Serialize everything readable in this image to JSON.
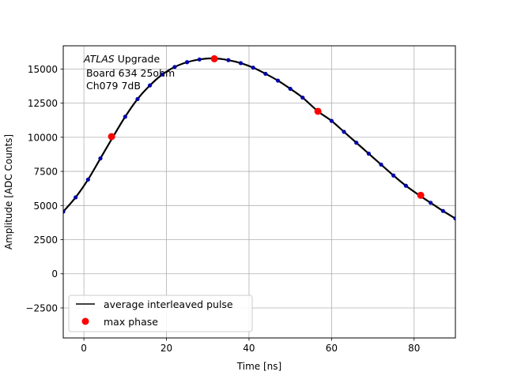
{
  "chart_data": {
    "type": "scatter",
    "title": "",
    "xlabel": "Time [ns]",
    "ylabel": "Amplitude [ADC Counts]",
    "xlim": [
      -5,
      90
    ],
    "ylim": [
      -4700,
      16700
    ],
    "xticks": [
      0,
      20,
      40,
      60,
      80
    ],
    "yticks": [
      -2500,
      0,
      2500,
      5000,
      7500,
      10000,
      12500,
      15000
    ],
    "grid": true,
    "legend_position": "lower-left",
    "annotation": {
      "italic": "ATLAS",
      "rest": " Upgrade",
      "line2": " Board 634 25ohm",
      "line3": " Ch079 7dB"
    },
    "series": [
      {
        "name": "average interleaved pulse",
        "kind": "line-with-markers",
        "color": "#000000",
        "marker_color": "#0000aa",
        "points": [
          [
            -5,
            4550
          ],
          [
            -2,
            5600
          ],
          [
            1,
            6900
          ],
          [
            4,
            8450
          ],
          [
            7,
            10000
          ],
          [
            10,
            11500
          ],
          [
            13,
            12800
          ],
          [
            16,
            13800
          ],
          [
            19,
            14600
          ],
          [
            22,
            15150
          ],
          [
            25,
            15500
          ],
          [
            28,
            15700
          ],
          [
            31.5,
            15780
          ],
          [
            35,
            15650
          ],
          [
            38,
            15430
          ],
          [
            41,
            15100
          ],
          [
            44,
            14650
          ],
          [
            47,
            14150
          ],
          [
            50,
            13550
          ],
          [
            53,
            12900
          ],
          [
            56.7,
            11900
          ],
          [
            60,
            11200
          ],
          [
            63,
            10400
          ],
          [
            66,
            9600
          ],
          [
            69,
            8800
          ],
          [
            72,
            8000
          ],
          [
            75,
            7200
          ],
          [
            78,
            6450
          ],
          [
            81.5,
            5700
          ],
          [
            84,
            5200
          ],
          [
            87,
            4600
          ],
          [
            90,
            4050
          ]
        ]
      },
      {
        "name": "max phase",
        "kind": "markers",
        "color": "#ff0000",
        "points": [
          [
            6.7,
            10050
          ],
          [
            31.6,
            15750
          ],
          [
            56.7,
            11900
          ],
          [
            81.6,
            5750
          ]
        ]
      }
    ]
  }
}
